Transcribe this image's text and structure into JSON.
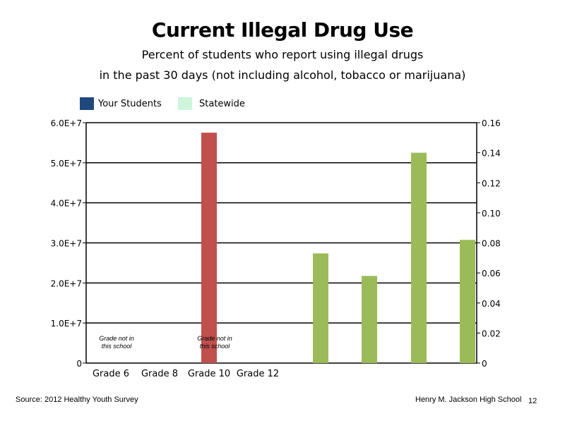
{
  "colors": {
    "your_students": "#1f497d",
    "statewide": "#ccf5dc",
    "red_bar": "#c0504d",
    "green_bar": "#9bbb59",
    "gridline": "#000000"
  },
  "legend": {
    "your_students": "Your Students",
    "statewide": "Statewide"
  },
  "footer": {
    "source": "Source: 2012 Healthy Youth Survey",
    "school": "Henry M.  Jackson High School",
    "page": "12"
  },
  "chart_data": {
    "type": "bar",
    "title": "Current Illegal Drug Use",
    "subtitle_lines": [
      "Percent of students who report using illegal drugs",
      "in the past 30 days (not including alcohol, tobacco or marijuana)"
    ],
    "categories": [
      "Grade 6",
      "Grade 8",
      "Grade 10",
      "Grade 12"
    ],
    "grid": true,
    "left_axis": {
      "range": [
        0,
        60000000
      ],
      "ticks": [
        0,
        10000000,
        20000000,
        30000000,
        40000000,
        50000000,
        60000000
      ],
      "tick_labels": [
        "0",
        "1.0E+7",
        "2.0E+7",
        "3.0E+7",
        "4.0E+7",
        "5.0E+7",
        "6.0E+7"
      ]
    },
    "right_axis": {
      "range": [
        0,
        0.16
      ],
      "ticks": [
        0,
        0.02,
        0.04,
        0.06,
        0.08,
        0.1,
        0.12,
        0.14,
        0.16
      ],
      "tick_labels": [
        "0",
        "0.02",
        "0.04",
        "0.06",
        "0.08",
        "0.10",
        "0.12",
        "0.14",
        "0.16"
      ]
    },
    "primary_bars": [
      {
        "category": "Grade 10",
        "value": 57500000,
        "axis": "left"
      }
    ],
    "secondary_bars": [
      {
        "value": 0.073,
        "axis": "right"
      },
      {
        "value": 0.058,
        "axis": "right"
      },
      {
        "value": 0.14,
        "axis": "right"
      },
      {
        "value": 0.082,
        "axis": "right"
      }
    ],
    "annotations": [
      {
        "category": "Grade 6",
        "line1": "Grade not in",
        "line2": "this school"
      },
      {
        "category": "Grade 10",
        "line1": "Grade not in",
        "line2": "this school"
      }
    ]
  }
}
